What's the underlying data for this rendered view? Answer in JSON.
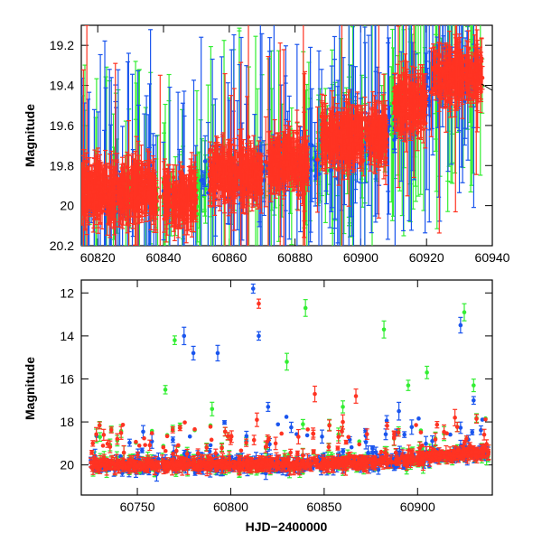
{
  "colors": {
    "green": "#33ee33",
    "blue": "#1a55ee",
    "red": "#ff3322"
  },
  "chart_data": [
    {
      "type": "scatter",
      "title": "",
      "xlabel": "",
      "ylabel": "Magnitude",
      "xlim": [
        60815,
        60940
      ],
      "ylim": [
        20.2,
        19.1
      ],
      "y_inverted": true,
      "x_ticks": [
        "60820",
        "60840",
        "60860",
        "60880",
        "60900",
        "60920",
        "60940"
      ],
      "y_ticks": [
        "19.2",
        "19.4",
        "19.6",
        "19.8",
        "20",
        "20.2"
      ],
      "grid": false,
      "legend": "none",
      "series": [
        {
          "color": "green",
          "trend": [
            [
              60815,
              19.95
            ],
            [
              60840,
              19.95
            ],
            [
              60860,
              19.85
            ],
            [
              60880,
              19.8
            ],
            [
              60900,
              19.7
            ],
            [
              60915,
              19.5
            ],
            [
              60925,
              19.35
            ],
            [
              60937,
              19.35
            ]
          ]
        },
        {
          "color": "blue",
          "trend": [
            [
              60815,
              19.95
            ],
            [
              60840,
              19.93
            ],
            [
              60860,
              19.85
            ],
            [
              60880,
              19.8
            ],
            [
              60900,
              19.68
            ],
            [
              60915,
              19.5
            ],
            [
              60925,
              19.35
            ],
            [
              60937,
              19.35
            ]
          ]
        },
        {
          "color": "red",
          "segments": [
            {
              "x": [
                60815,
                60838
              ],
              "y": 19.93
            },
            {
              "x": [
                60840,
                60850
              ],
              "y": 19.97
            },
            {
              "x": [
                60854,
                60870
              ],
              "y": 19.85
            },
            {
              "x": [
                60872,
                60884
              ],
              "y": 19.78
            },
            {
              "x": [
                60888,
                60908
              ],
              "y": 19.66
            },
            {
              "x": [
                60910,
                60920
              ],
              "y": 19.5
            },
            {
              "x": [
                60922,
                60937
              ],
              "y": 19.35
            }
          ]
        }
      ]
    },
    {
      "type": "scatter",
      "title": "",
      "xlabel": "HJD−2400000",
      "ylabel": "Magnitude",
      "xlim": [
        60720,
        60940
      ],
      "ylim": [
        21.4,
        11.4
      ],
      "y_inverted": true,
      "x_ticks": [
        "60750",
        "60800",
        "60850",
        "60900"
      ],
      "y_ticks": [
        "12",
        "14",
        "16",
        "18",
        "20"
      ],
      "grid": false,
      "legend": "none",
      "baseline": [
        [
          60725,
          20.0
        ],
        [
          60800,
          20.0
        ],
        [
          60850,
          19.95
        ],
        [
          60880,
          19.85
        ],
        [
          60900,
          19.7
        ],
        [
          60920,
          19.5
        ],
        [
          60938,
          19.4
        ]
      ],
      "outliers": [
        {
          "color": "green",
          "x": 60770,
          "y": 14.2
        },
        {
          "color": "green",
          "x": 60765,
          "y": 16.5
        },
        {
          "color": "green",
          "x": 60830,
          "y": 15.2
        },
        {
          "color": "green",
          "x": 60840,
          "y": 12.7
        },
        {
          "color": "green",
          "x": 60882,
          "y": 13.7
        },
        {
          "color": "green",
          "x": 60905,
          "y": 15.7
        },
        {
          "color": "green",
          "x": 60895,
          "y": 16.3
        },
        {
          "color": "green",
          "x": 60930,
          "y": 16.3
        },
        {
          "color": "green",
          "x": 60925,
          "y": 12.9
        },
        {
          "color": "green",
          "x": 60730,
          "y": 18.7
        },
        {
          "color": "green",
          "x": 60790,
          "y": 17.4
        },
        {
          "color": "green",
          "x": 60860,
          "y": 17.3
        },
        {
          "color": "blue",
          "x": 60775,
          "y": 14.0
        },
        {
          "color": "blue",
          "x": 60780,
          "y": 14.8
        },
        {
          "color": "blue",
          "x": 60793,
          "y": 14.8
        },
        {
          "color": "blue",
          "x": 60812,
          "y": 11.8
        },
        {
          "color": "blue",
          "x": 60815,
          "y": 14.0
        },
        {
          "color": "blue",
          "x": 60923,
          "y": 13.5
        },
        {
          "color": "blue",
          "x": 60930,
          "y": 17.0
        },
        {
          "color": "blue",
          "x": 60820,
          "y": 17.3
        },
        {
          "color": "blue",
          "x": 60890,
          "y": 17.5
        },
        {
          "color": "red",
          "x": 60815,
          "y": 12.5
        },
        {
          "color": "red",
          "x": 60845,
          "y": 16.7
        },
        {
          "color": "red",
          "x": 60867,
          "y": 16.8
        },
        {
          "color": "red",
          "x": 60860,
          "y": 18.0
        },
        {
          "color": "red",
          "x": 60732,
          "y": 18.6
        },
        {
          "color": "red",
          "x": 60814,
          "y": 17.9
        },
        {
          "color": "red",
          "x": 60920,
          "y": 17.8
        }
      ]
    }
  ]
}
